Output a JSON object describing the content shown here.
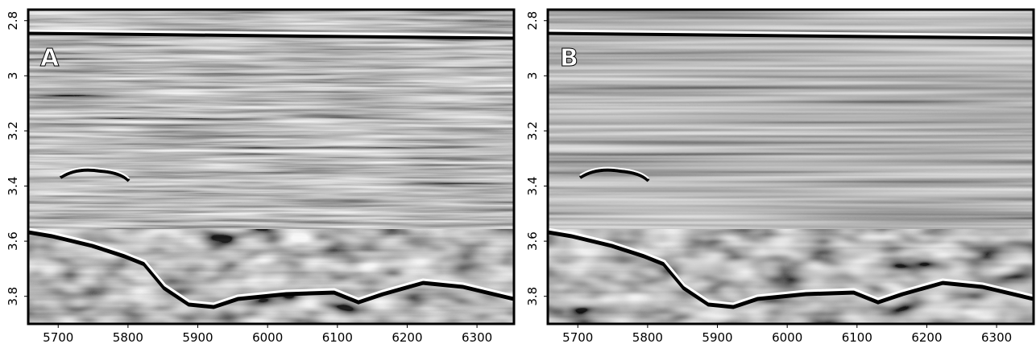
{
  "panels": [
    {
      "label": "A",
      "xlim": [
        5657,
        6353
      ],
      "xticks": [
        5700,
        5800,
        5900,
        6000,
        6100,
        6200,
        6300
      ],
      "ylim": [
        2.76,
        3.9
      ],
      "yticks": [
        2.8,
        3,
        3.2,
        3.4,
        3.6,
        3.8
      ]
    },
    {
      "label": "B",
      "xlim": [
        5657,
        6353
      ],
      "xticks": [
        5700,
        5800,
        5900,
        6000,
        6100,
        6200,
        6300
      ],
      "ylim": [
        2.76,
        3.9
      ],
      "yticks": [
        2.8,
        3,
        3.2,
        3.4,
        3.6,
        3.8
      ]
    }
  ]
}
